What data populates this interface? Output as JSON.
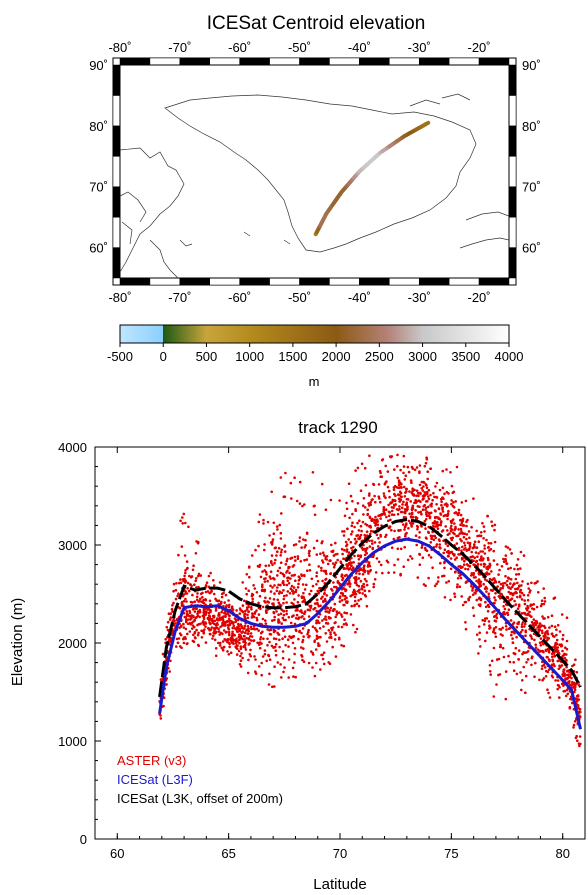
{
  "colors": {
    "aster": "#e00000",
    "icesat_l3f": "#1a1acc",
    "icesat_l3k": "#000000",
    "coast": "#333333"
  },
  "chart_data": [
    {
      "type": "map",
      "title": "ICESat Centroid elevation",
      "lon_ticks": [
        "-80˚",
        "-70˚",
        "-60˚",
        "-50˚",
        "-40˚",
        "-30˚",
        "-20˚"
      ],
      "lon_values": [
        -80,
        -70,
        -60,
        -50,
        -40,
        -30,
        -20
      ],
      "lat_ticks": [
        "90˚",
        "80˚",
        "70˚",
        "60˚"
      ],
      "lat_values": [
        90,
        80,
        70,
        60
      ],
      "lon_range": [
        -80,
        -15
      ],
      "lat_range": [
        55,
        90
      ],
      "track": [
        {
          "lon": -47.3,
          "lat": 62.2
        },
        {
          "lon": -45.5,
          "lat": 65.6
        },
        {
          "lon": -43.0,
          "lat": 69.1
        },
        {
          "lon": -40.0,
          "lat": 72.5
        },
        {
          "lon": -36.5,
          "lat": 75.6
        },
        {
          "lon": -32.5,
          "lat": 78.3
        },
        {
          "lon": -28.5,
          "lat": 80.5
        }
      ],
      "colorbar": {
        "ticks": [
          "-500",
          "0",
          "500",
          "1000",
          "1500",
          "2000",
          "2500",
          "3000",
          "3500",
          "4000"
        ],
        "range": [
          -500,
          4000
        ],
        "label": "m",
        "stops": [
          {
            "v": -500,
            "c": "#bfe6ff"
          },
          {
            "v": -1,
            "c": "#8ccfff"
          },
          {
            "v": 0,
            "c": "#1e5a14"
          },
          {
            "v": 500,
            "c": "#c8a53c"
          },
          {
            "v": 1000,
            "c": "#b48c1e"
          },
          {
            "v": 2000,
            "c": "#8c5a14"
          },
          {
            "v": 2600,
            "c": "#b48278"
          },
          {
            "v": 3000,
            "c": "#c8c8c8"
          },
          {
            "v": 4000,
            "c": "#ffffff"
          }
        ]
      }
    },
    {
      "type": "scatter",
      "title": "track 1290",
      "xlabel": "Latitude",
      "ylabel": "Elevation (m)",
      "xlim": [
        59,
        81
      ],
      "ylim": [
        0,
        4000
      ],
      "xticks": [
        60,
        65,
        70,
        75,
        80
      ],
      "yticks": [
        0,
        1000,
        2000,
        3000,
        4000
      ],
      "legend_position": "bottom-left",
      "series": [
        {
          "name": "ASTER (v3)",
          "style": "points",
          "envelope": [
            {
              "x": 61.9,
              "lo": 1150,
              "mid": 1350,
              "hi": 1650
            },
            {
              "x": 62.4,
              "lo": 1700,
              "mid": 2050,
              "hi": 2450
            },
            {
              "x": 62.9,
              "lo": 1950,
              "mid": 2450,
              "hi": 3350
            },
            {
              "x": 63.5,
              "lo": 2000,
              "mid": 2350,
              "hi": 3150
            },
            {
              "x": 64.0,
              "lo": 2000,
              "mid": 2350,
              "hi": 2950
            },
            {
              "x": 64.5,
              "lo": 1850,
              "mid": 2250,
              "hi": 2700
            },
            {
              "x": 65.0,
              "lo": 1800,
              "mid": 2150,
              "hi": 2500
            },
            {
              "x": 65.5,
              "lo": 1750,
              "mid": 2100,
              "hi": 2500
            },
            {
              "x": 66.0,
              "lo": 1750,
              "mid": 2200,
              "hi": 3000
            },
            {
              "x": 66.5,
              "lo": 1500,
              "mid": 2300,
              "hi": 3500
            },
            {
              "x": 67.0,
              "lo": 1550,
              "mid": 2500,
              "hi": 3800
            },
            {
              "x": 68.0,
              "lo": 1600,
              "mid": 2400,
              "hi": 3700
            },
            {
              "x": 69.0,
              "lo": 1650,
              "mid": 2400,
              "hi": 3800
            },
            {
              "x": 70.0,
              "lo": 1900,
              "mid": 2550,
              "hi": 3550
            },
            {
              "x": 71.0,
              "lo": 2200,
              "mid": 2900,
              "hi": 3900
            },
            {
              "x": 72.0,
              "lo": 2600,
              "mid": 3350,
              "hi": 3950
            },
            {
              "x": 73.0,
              "lo": 2700,
              "mid": 3450,
              "hi": 3950
            },
            {
              "x": 74.0,
              "lo": 2500,
              "mid": 3300,
              "hi": 3950
            },
            {
              "x": 75.0,
              "lo": 2400,
              "mid": 3100,
              "hi": 3900
            },
            {
              "x": 76.0,
              "lo": 2000,
              "mid": 2750,
              "hi": 3500
            },
            {
              "x": 77.0,
              "lo": 1300,
              "mid": 2500,
              "hi": 3200
            },
            {
              "x": 78.0,
              "lo": 1500,
              "mid": 2350,
              "hi": 3100
            },
            {
              "x": 79.0,
              "lo": 1400,
              "mid": 2100,
              "hi": 2800
            },
            {
              "x": 80.0,
              "lo": 1300,
              "mid": 1800,
              "hi": 2500
            },
            {
              "x": 80.8,
              "lo": 900,
              "mid": 1300,
              "hi": 1600
            }
          ]
        },
        {
          "name": "ICESat (L3F)",
          "style": "line",
          "x": [
            61.9,
            62.2,
            62.6,
            63.0,
            63.5,
            64.0,
            64.5,
            65.0,
            65.5,
            66.0,
            66.5,
            67.0,
            67.5,
            68.0,
            68.5,
            69.0,
            69.5,
            70.0,
            70.5,
            71.0,
            71.5,
            72.0,
            72.5,
            73.0,
            73.5,
            74.0,
            74.5,
            75.0,
            75.5,
            76.0,
            76.5,
            77.0,
            77.5,
            78.0,
            78.5,
            79.0,
            79.5,
            80.0,
            80.4,
            80.8
          ],
          "y": [
            1280,
            1750,
            2120,
            2360,
            2380,
            2370,
            2380,
            2330,
            2250,
            2200,
            2170,
            2160,
            2160,
            2170,
            2200,
            2300,
            2420,
            2560,
            2700,
            2820,
            2920,
            2990,
            3040,
            3060,
            3040,
            2990,
            2900,
            2800,
            2710,
            2600,
            2480,
            2350,
            2220,
            2100,
            1980,
            1860,
            1740,
            1620,
            1520,
            1120
          ]
        },
        {
          "name": "ICESat (L3K, offset of 200m)",
          "style": "dashed",
          "x": [
            61.9,
            62.2,
            62.6,
            63.0,
            63.5,
            64.0,
            64.5,
            65.0,
            65.5,
            66.0,
            66.5,
            67.0,
            67.5,
            68.0,
            68.5,
            69.0,
            69.5,
            70.0,
            70.5,
            71.0,
            71.5,
            72.0,
            72.5,
            73.0,
            73.5,
            74.0,
            74.5,
            75.0,
            75.5,
            76.0,
            76.5,
            77.0,
            77.5,
            78.0,
            78.5,
            79.0,
            79.5,
            80.0,
            80.4,
            80.8
          ],
          "y": [
            1450,
            1950,
            2330,
            2580,
            2540,
            2560,
            2560,
            2530,
            2450,
            2400,
            2370,
            2360,
            2360,
            2370,
            2400,
            2500,
            2620,
            2760,
            2900,
            3020,
            3120,
            3190,
            3240,
            3260,
            3240,
            3190,
            3100,
            3000,
            2910,
            2800,
            2680,
            2550,
            2420,
            2300,
            2180,
            2060,
            1940,
            1820,
            1720,
            1550
          ]
        }
      ]
    }
  ]
}
